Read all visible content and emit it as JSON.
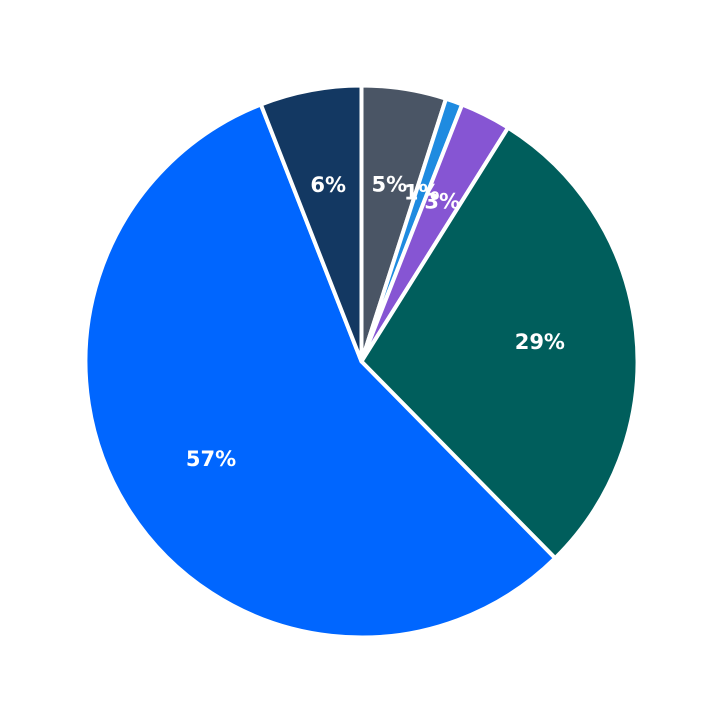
{
  "chart_data": {
    "type": "pie",
    "start_angle_deg": 90,
    "direction": "clockwise",
    "slices": [
      {
        "value": 5,
        "label": "5%",
        "color": "#4a5565"
      },
      {
        "value": 1,
        "label": "1%",
        "color": "#1f8be0"
      },
      {
        "value": 3,
        "label": "3%",
        "color": "#8655d3"
      },
      {
        "value": 29,
        "label": "29%",
        "color": "#005e5c"
      },
      {
        "value": 57,
        "label": "57%",
        "color": "#0066ff"
      },
      {
        "value": 6,
        "label": "6%",
        "color": "#133862"
      }
    ]
  }
}
